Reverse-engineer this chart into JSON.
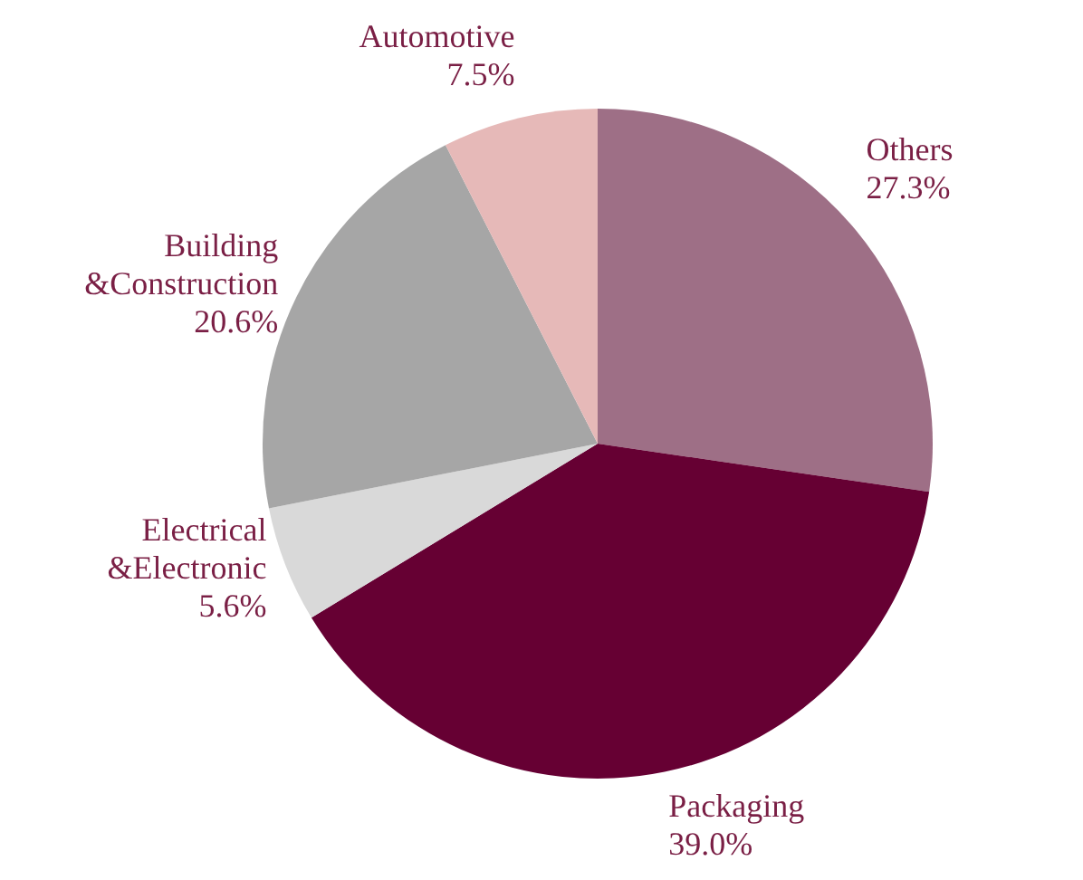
{
  "chart_data": {
    "type": "pie",
    "categories": [
      "Others",
      "Packaging",
      "Electrical &Electronic",
      "Building &Construction",
      "Automotive"
    ],
    "values": [
      27.3,
      39.0,
      5.6,
      20.6,
      7.5
    ],
    "colors": [
      "#9e6f86",
      "#660033",
      "#d9d9d9",
      "#a6a6a6",
      "#e6b9b8"
    ],
    "value_labels": [
      "27.3%",
      "39.0%",
      "5.6%",
      "20.6%",
      "7.5%"
    ],
    "legend": false
  }
}
